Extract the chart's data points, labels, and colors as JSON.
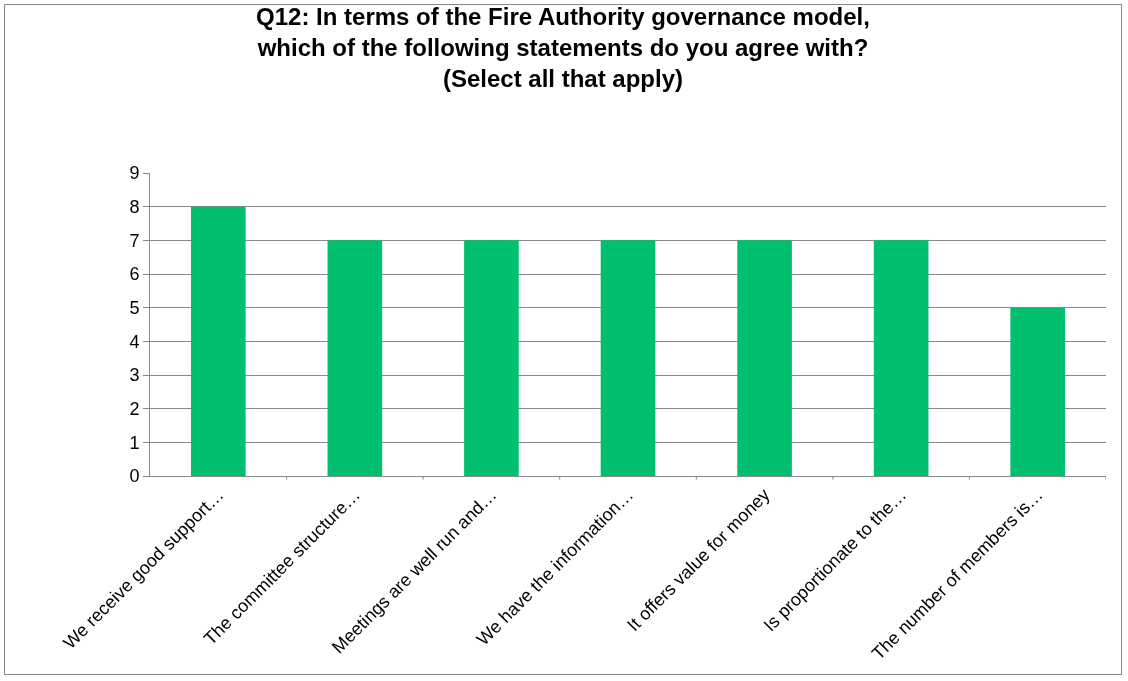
{
  "chart_data": {
    "type": "bar",
    "title": "Q12: In terms of the Fire Authority governance model,\nwhich of the following statements do you agree with?\n(Select all that apply)",
    "categories": [
      "We receive good support…",
      "The committee structure…",
      "Meetings are well run and…",
      "We have the information…",
      "It offers value for money",
      "Is proportionate to the…",
      "The number of members is…"
    ],
    "values": [
      8,
      7,
      7,
      7,
      7,
      7,
      5
    ],
    "color": "#00bf6f",
    "ylim": [
      0,
      9
    ],
    "yticks": [
      0,
      1,
      2,
      3,
      4,
      5,
      6,
      7,
      8,
      9
    ],
    "grid": "y"
  }
}
